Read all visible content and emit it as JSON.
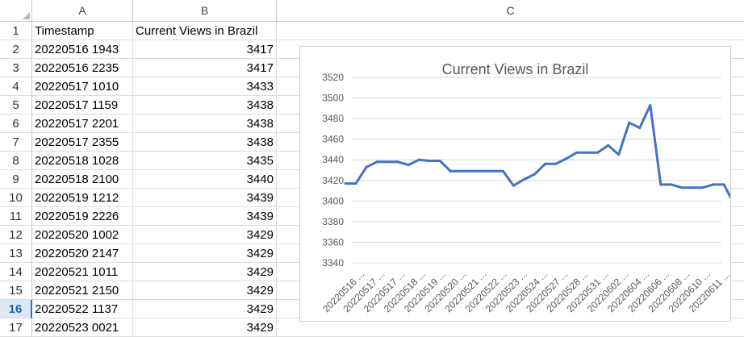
{
  "columns": [
    "A",
    "B",
    "C"
  ],
  "active_row": "16",
  "rows": [
    {
      "n": "1",
      "a": "Timestamp",
      "b": "Current Views in Brazil"
    },
    {
      "n": "2",
      "a": "20220516 1943",
      "b": "3417"
    },
    {
      "n": "3",
      "a": "20220516 2235",
      "b": "3417"
    },
    {
      "n": "4",
      "a": "20220517 1010",
      "b": "3433"
    },
    {
      "n": "5",
      "a": "20220517 1159",
      "b": "3438"
    },
    {
      "n": "6",
      "a": "20220517 2201",
      "b": "3438"
    },
    {
      "n": "7",
      "a": "20220517 2355",
      "b": "3438"
    },
    {
      "n": "8",
      "a": "20220518 1028",
      "b": "3435"
    },
    {
      "n": "9",
      "a": "20220518 2100",
      "b": "3440"
    },
    {
      "n": "10",
      "a": "20220519 1212",
      "b": "3439"
    },
    {
      "n": "11",
      "a": "20220519 2226",
      "b": "3439"
    },
    {
      "n": "12",
      "a": "20220520 1002",
      "b": "3429"
    },
    {
      "n": "13",
      "a": "20220520 2147",
      "b": "3429"
    },
    {
      "n": "14",
      "a": "20220521 1011",
      "b": "3429"
    },
    {
      "n": "15",
      "a": "20220521 2150",
      "b": "3429"
    },
    {
      "n": "16",
      "a": "20220522 1137",
      "b": "3429"
    },
    {
      "n": "17",
      "a": "20220523 0021",
      "b": "3429"
    }
  ],
  "chart_data": {
    "type": "line",
    "title": "Current Views in Brazil",
    "xlabel": "",
    "ylabel": "",
    "ylim": [
      3340,
      3520
    ],
    "yticks": [
      "3520",
      "3500",
      "3480",
      "3460",
      "3440",
      "3420",
      "3400",
      "3380",
      "3360",
      "3340"
    ],
    "grid": true,
    "legend": "none",
    "color": "#4472c4",
    "x_tick_labels": [
      "20220516 ...",
      "20220517 ...",
      "20220517 ...",
      "20220518 ...",
      "20220519 ...",
      "20220520 ...",
      "20220521 ...",
      "20220522 ...",
      "20220523 ...",
      "20220524 ...",
      "20220527 ...",
      "20220528 ...",
      "20220531 ...",
      "20220602 ...",
      "20220604 ...",
      "20220606 ...",
      "20220608 ...",
      "20220610 ...",
      "20220611 ..."
    ],
    "values": [
      3417,
      3417,
      3433,
      3438,
      3438,
      3438,
      3435,
      3440,
      3439,
      3439,
      3429,
      3429,
      3429,
      3429,
      3429,
      3429,
      3415,
      3421,
      3426,
      3436,
      3436,
      3441,
      3447,
      3447,
      3447,
      3454,
      3445,
      3476,
      3471,
      3493,
      3416,
      3416,
      3413,
      3413,
      3413,
      3416,
      3416,
      3397
    ]
  }
}
